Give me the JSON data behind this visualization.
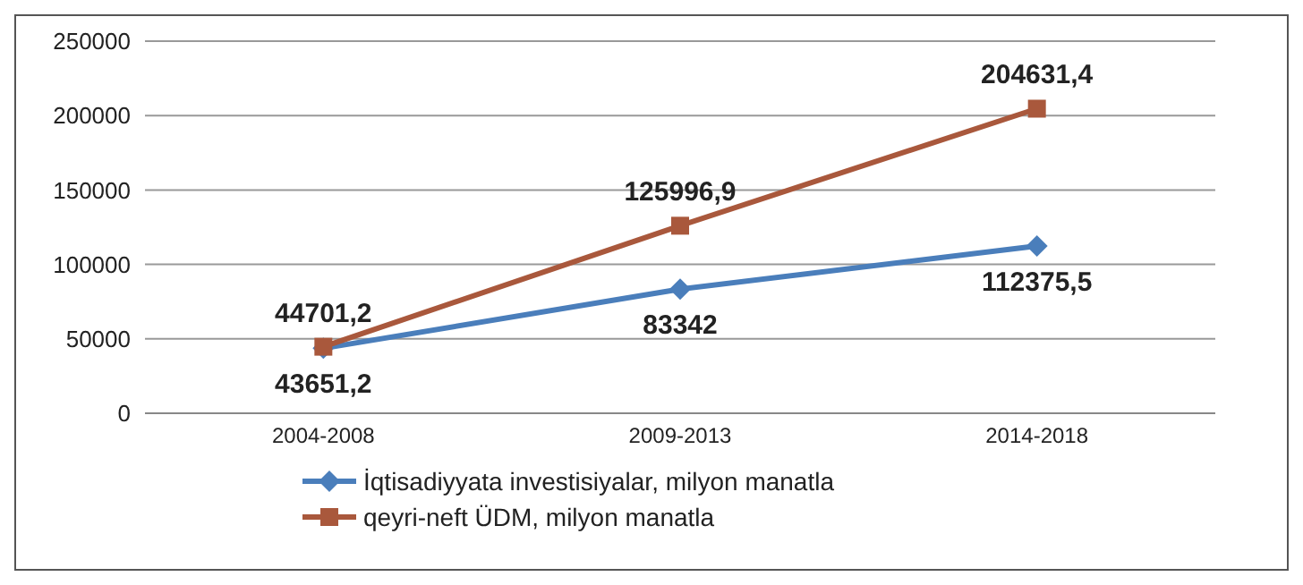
{
  "chart_data": {
    "type": "line",
    "categories": [
      "2004-2008",
      "2009-2013",
      "2014-2018"
    ],
    "series": [
      {
        "name": "İqtisadiyyata investisiyalar, milyon manatla",
        "color": "#4a7ebb",
        "marker": "diamond",
        "values": [
          43651.2,
          83342,
          112375.5
        ],
        "value_labels": [
          "43651,2",
          "83342",
          "112375,5"
        ]
      },
      {
        "name": "qeyri-neft ÜDM, milyon manatla",
        "color": "#a9583c",
        "marker": "square",
        "values": [
          44701.2,
          125996.9,
          204631.4
        ],
        "value_labels": [
          "44701,2",
          "125996,9",
          "204631,4"
        ]
      }
    ],
    "ylim": [
      0,
      250000
    ],
    "yticks": [
      0,
      50000,
      100000,
      150000,
      200000,
      250000
    ],
    "grid": "y",
    "legend": "bottom left"
  }
}
